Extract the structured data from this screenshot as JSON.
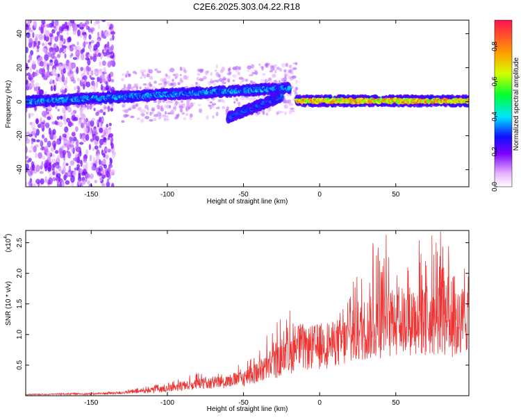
{
  "title": "C2E6.2025.303.04.22.R18",
  "chart_data": [
    {
      "type": "heatmap",
      "title": "C2E6.2025.303.04.22.R18",
      "xlabel": "Height of straight line (km)",
      "ylabel": "Frequency (Hz)",
      "xlim": [
        -193,
        98
      ],
      "ylim": [
        -50,
        48
      ],
      "xticks": [
        -150,
        -100,
        -50,
        0,
        50
      ],
      "xtick_labels": [
        "-150",
        "-100",
        "-50",
        "0",
        "50"
      ],
      "yticks": [
        -40,
        -20,
        0,
        20,
        40
      ],
      "ytick_labels": [
        "-40",
        "-20",
        "0",
        "20",
        "40"
      ],
      "colorbar": {
        "label": "Normalized spectral amplitude",
        "range": [
          0,
          0.95
        ],
        "ticks": [
          0,
          0.2,
          0.4,
          0.6,
          0.8
        ],
        "tick_labels": [
          "0.0",
          "0.2",
          "0.4",
          "0.6",
          "0.8"
        ]
      },
      "ridge": {
        "segments": [
          {
            "x_start": -193,
            "x_end": -20,
            "freq_start": 0,
            "freq_end": 8,
            "amp": 0.35
          },
          {
            "x_start": -60,
            "x_end": -25,
            "freq_start": -9,
            "freq_end": 3,
            "amp": 0.3
          },
          {
            "x_start": -15,
            "x_end": 98,
            "freq_start": 0.5,
            "freq_end": 0.5,
            "amp": 0.75
          }
        ],
        "scatter_region_x": [
          -193,
          -135
        ]
      }
    },
    {
      "type": "line",
      "xlabel": "Height of straight line (km)",
      "ylabel": "SNR (10 * v/v)",
      "y_scale_label": "(x10",
      "y_scale_exponent": "4",
      "xlim": [
        -193,
        98
      ],
      "ylim": [
        0,
        2.7
      ],
      "xticks": [
        -150,
        -100,
        -50,
        0,
        50
      ],
      "xtick_labels": [
        "-150",
        "-100",
        "-50",
        "0",
        "50"
      ],
      "yticks": [
        0.5,
        1.0,
        1.5,
        2.0,
        2.5
      ],
      "ytick_labels": [
        "0.5",
        "1.0",
        "1.5",
        "2.0",
        "2.5"
      ],
      "series": [
        {
          "name": "SNR",
          "color": "#ee3333",
          "x": [
            -193,
            -180,
            -170,
            -160,
            -150,
            -140,
            -130,
            -120,
            -110,
            -100,
            -90,
            -80,
            -70,
            -60,
            -50,
            -40,
            -30,
            -20,
            -15,
            -10,
            0,
            10,
            20,
            30,
            40,
            50,
            60,
            70,
            80,
            90,
            98
          ],
          "y": [
            0.02,
            0.02,
            0.03,
            0.03,
            0.03,
            0.04,
            0.05,
            0.07,
            0.09,
            0.12,
            0.16,
            0.2,
            0.22,
            0.25,
            0.3,
            0.4,
            0.55,
            0.65,
            0.9,
            0.8,
            0.85,
            0.9,
            0.95,
            1.15,
            1.2,
            1.25,
            1.3,
            1.25,
            1.3,
            1.2,
            1.4
          ],
          "envelope": [
            0.03,
            0.03,
            0.04,
            0.05,
            0.05,
            0.06,
            0.08,
            0.12,
            0.18,
            0.22,
            0.32,
            0.38,
            0.35,
            0.42,
            0.55,
            0.8,
            1.2,
            1.4,
            1.55,
            1.1,
            1.0,
            1.15,
            1.8,
            2.65,
            2.7,
            2.6,
            2.55,
            2.6,
            2.7,
            2.5,
            2.1
          ]
        }
      ]
    }
  ]
}
